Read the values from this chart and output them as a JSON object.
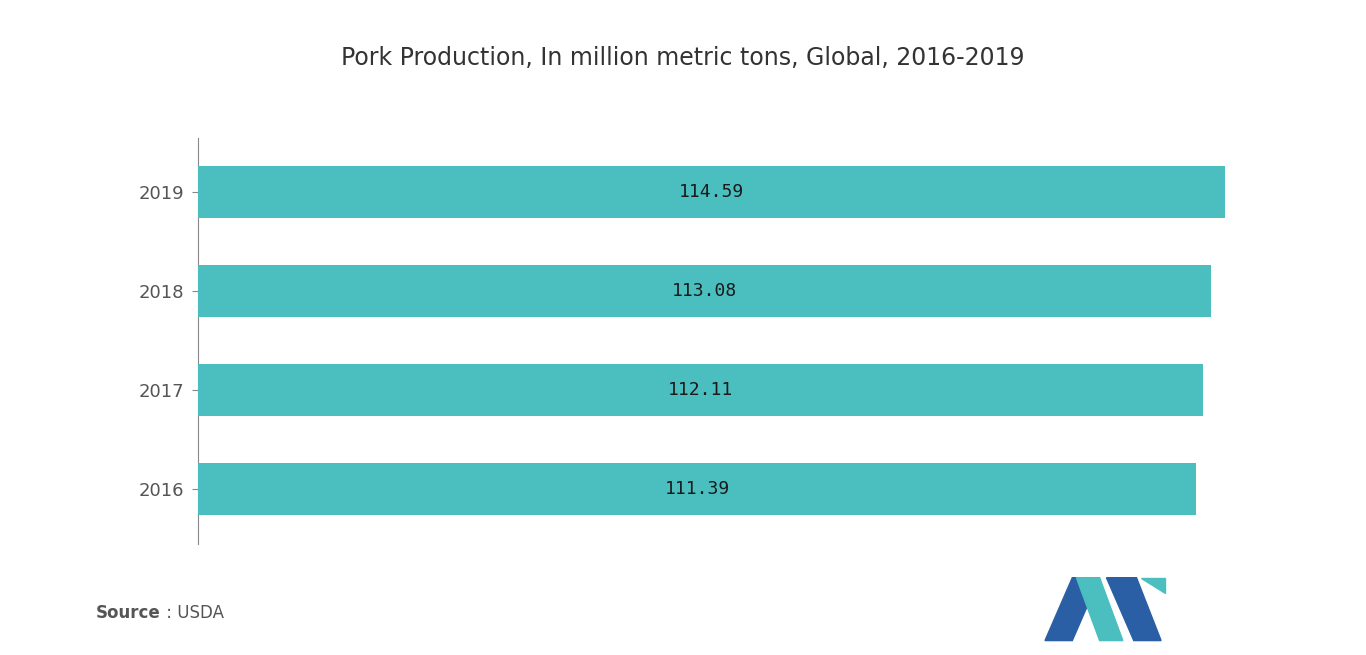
{
  "title": "Pork Production, In million metric tons, Global, 2016-2019",
  "years": [
    "2019",
    "2018",
    "2017",
    "2016"
  ],
  "values": [
    114.59,
    113.08,
    112.11,
    111.39
  ],
  "bar_color": "#4BBFBF",
  "bar_height": 0.52,
  "xlim": [
    0,
    125
  ],
  "ylim": [
    -0.55,
    3.55
  ],
  "background_color": "#ffffff",
  "title_fontsize": 17,
  "label_fontsize": 13,
  "ytick_fontsize": 13,
  "source_bold": "Source",
  "source_regular": " : USDA",
  "logo_dark": "#2a5fa5",
  "logo_teal": "#4BBFBF"
}
